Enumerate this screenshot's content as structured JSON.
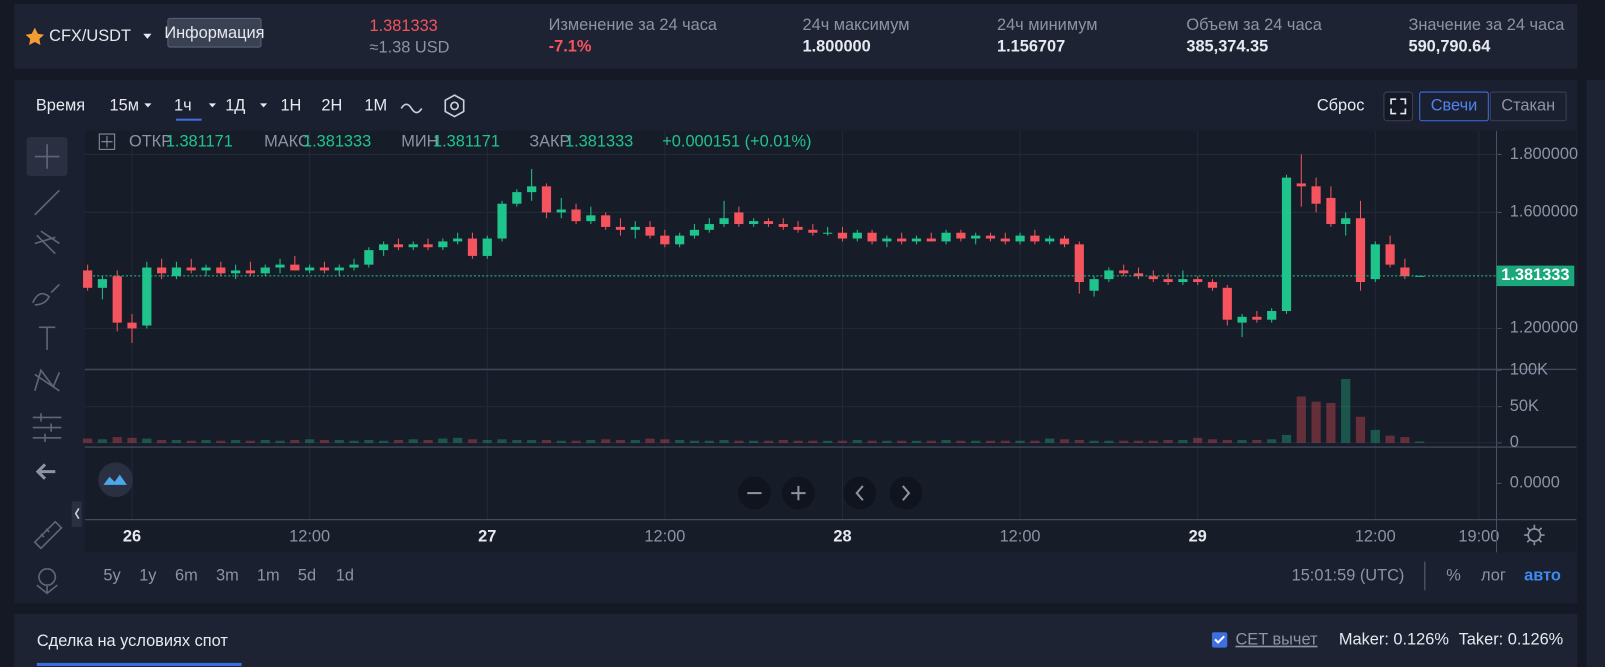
{
  "header": {
    "pair": "CFX/USDT",
    "info_button": "Информация",
    "price": "1.381333",
    "price_usd": "≈1.38 USD",
    "stats": [
      {
        "label": "Изменение за 24 часа",
        "value": "-7.1%"
      },
      {
        "label": "24ч максимум",
        "value": "1.800000"
      },
      {
        "label": "24ч минимум",
        "value": "1.156707"
      },
      {
        "label": "Объем за 24 часа",
        "value": "385,374.35"
      },
      {
        "label": "Значение за 24 часа",
        "value": "590,790.64"
      }
    ]
  },
  "toolbar": {
    "time_label": "Время",
    "intervals": [
      "15м",
      "1ч",
      "1Д",
      "1Н",
      "2Н",
      "1М"
    ],
    "reset": "Сброс",
    "views": [
      "Свечи",
      "Стакан"
    ]
  },
  "legend": {
    "open_label": "ОТКР",
    "open": "1.381171",
    "high_label": "МАКС",
    "high": "1.381333",
    "low_label": "МИН",
    "low": "1.381171",
    "close_label": "ЗАКР",
    "close": "1.381333",
    "change": "+0.000151 (+0.01%)"
  },
  "ranges": [
    "5y",
    "1y",
    "6m",
    "3m",
    "1m",
    "5d",
    "1d"
  ],
  "clock": "15:01:59 (UTC)",
  "scale_buttons": [
    "%",
    "лог",
    "авто"
  ],
  "trade": {
    "title": "Сделка на условиях спот",
    "cet": "CET вычет",
    "maker": "Maker: 0.126%",
    "taker": "Taker: 0.126%"
  },
  "chart_data": [
    {
      "type": "candlestick",
      "up_color": "#1fc48d",
      "down_color": "#f5535d",
      "grid": true,
      "xlim": [
        -0.18,
        95.05
      ],
      "ylim": [
        1.059,
        1.881
      ],
      "xticks": [
        {
          "value": 3,
          "label": "26"
        },
        {
          "value": 15,
          "label": "12:00"
        },
        {
          "value": 27,
          "label": "27"
        },
        {
          "value": 39,
          "label": "12:00"
        },
        {
          "value": 51,
          "label": "28"
        },
        {
          "value": 63,
          "label": "12:00"
        },
        {
          "value": 75,
          "label": "29"
        },
        {
          "value": 87,
          "label": "12:00"
        },
        {
          "value": 94,
          "label": "19:00"
        }
      ],
      "yticks": [
        {
          "value": 1.8,
          "label": "1.800000"
        },
        {
          "value": 1.6,
          "label": "1.600000"
        },
        {
          "value": 1.2,
          "label": "1.200000"
        }
      ],
      "last_price": 1.381333,
      "values": [
        [
          1.4,
          1.42,
          1.33,
          1.34
        ],
        [
          1.34,
          1.38,
          1.3,
          1.37
        ],
        [
          1.38,
          1.4,
          1.19,
          1.22
        ],
        [
          1.22,
          1.25,
          1.15,
          1.2
        ],
        [
          1.21,
          1.43,
          1.2,
          1.41
        ],
        [
          1.41,
          1.44,
          1.37,
          1.39
        ],
        [
          1.38,
          1.43,
          1.37,
          1.41
        ],
        [
          1.41,
          1.44,
          1.39,
          1.4
        ],
        [
          1.4,
          1.42,
          1.38,
          1.41
        ],
        [
          1.41,
          1.43,
          1.38,
          1.39
        ],
        [
          1.39,
          1.42,
          1.37,
          1.4
        ],
        [
          1.4,
          1.43,
          1.38,
          1.39
        ],
        [
          1.39,
          1.42,
          1.38,
          1.41
        ],
        [
          1.41,
          1.44,
          1.39,
          1.42
        ],
        [
          1.42,
          1.45,
          1.4,
          1.4
        ],
        [
          1.4,
          1.42,
          1.39,
          1.41
        ],
        [
          1.41,
          1.43,
          1.39,
          1.4
        ],
        [
          1.4,
          1.42,
          1.38,
          1.41
        ],
        [
          1.41,
          1.44,
          1.4,
          1.42
        ],
        [
          1.42,
          1.48,
          1.41,
          1.47
        ],
        [
          1.47,
          1.5,
          1.45,
          1.49
        ],
        [
          1.49,
          1.51,
          1.47,
          1.48
        ],
        [
          1.48,
          1.5,
          1.47,
          1.49
        ],
        [
          1.49,
          1.51,
          1.47,
          1.48
        ],
        [
          1.48,
          1.51,
          1.47,
          1.5
        ],
        [
          1.5,
          1.53,
          1.49,
          1.51
        ],
        [
          1.51,
          1.53,
          1.44,
          1.45
        ],
        [
          1.45,
          1.52,
          1.44,
          1.51
        ],
        [
          1.51,
          1.64,
          1.5,
          1.63
        ],
        [
          1.63,
          1.68,
          1.62,
          1.67
        ],
        [
          1.67,
          1.75,
          1.64,
          1.69
        ],
        [
          1.69,
          1.7,
          1.58,
          1.6
        ],
        [
          1.6,
          1.65,
          1.58,
          1.61
        ],
        [
          1.61,
          1.63,
          1.56,
          1.57
        ],
        [
          1.57,
          1.62,
          1.56,
          1.59
        ],
        [
          1.59,
          1.6,
          1.54,
          1.55
        ],
        [
          1.55,
          1.58,
          1.52,
          1.54
        ],
        [
          1.54,
          1.57,
          1.51,
          1.55
        ],
        [
          1.55,
          1.57,
          1.51,
          1.52
        ],
        [
          1.52,
          1.54,
          1.48,
          1.49
        ],
        [
          1.49,
          1.53,
          1.48,
          1.52
        ],
        [
          1.52,
          1.56,
          1.51,
          1.54
        ],
        [
          1.54,
          1.58,
          1.53,
          1.56
        ],
        [
          1.56,
          1.64,
          1.55,
          1.58
        ],
        [
          1.6,
          1.62,
          1.55,
          1.56
        ],
        [
          1.56,
          1.58,
          1.55,
          1.57
        ],
        [
          1.57,
          1.58,
          1.55,
          1.56
        ],
        [
          1.56,
          1.58,
          1.54,
          1.55
        ],
        [
          1.55,
          1.57,
          1.53,
          1.54
        ],
        [
          1.54,
          1.56,
          1.52,
          1.53
        ],
        [
          1.53,
          1.55,
          1.52,
          1.53
        ],
        [
          1.53,
          1.55,
          1.5,
          1.51
        ],
        [
          1.51,
          1.54,
          1.5,
          1.53
        ],
        [
          1.53,
          1.54,
          1.49,
          1.5
        ],
        [
          1.5,
          1.52,
          1.48,
          1.51
        ],
        [
          1.51,
          1.53,
          1.49,
          1.5
        ],
        [
          1.5,
          1.52,
          1.49,
          1.51
        ],
        [
          1.51,
          1.53,
          1.5,
          1.5
        ],
        [
          1.5,
          1.54,
          1.49,
          1.53
        ],
        [
          1.53,
          1.54,
          1.5,
          1.51
        ],
        [
          1.51,
          1.53,
          1.49,
          1.52
        ],
        [
          1.52,
          1.53,
          1.5,
          1.51
        ],
        [
          1.51,
          1.53,
          1.49,
          1.5
        ],
        [
          1.5,
          1.53,
          1.49,
          1.52
        ],
        [
          1.52,
          1.54,
          1.49,
          1.5
        ],
        [
          1.5,
          1.52,
          1.49,
          1.51
        ],
        [
          1.51,
          1.52,
          1.48,
          1.49
        ],
        [
          1.49,
          1.5,
          1.32,
          1.36
        ],
        [
          1.33,
          1.38,
          1.31,
          1.37
        ],
        [
          1.37,
          1.41,
          1.36,
          1.4
        ],
        [
          1.4,
          1.42,
          1.38,
          1.39
        ],
        [
          1.39,
          1.41,
          1.37,
          1.38
        ],
        [
          1.38,
          1.4,
          1.36,
          1.37
        ],
        [
          1.37,
          1.39,
          1.35,
          1.36
        ],
        [
          1.36,
          1.4,
          1.35,
          1.37
        ],
        [
          1.37,
          1.38,
          1.35,
          1.36
        ],
        [
          1.36,
          1.37,
          1.33,
          1.34
        ],
        [
          1.34,
          1.35,
          1.21,
          1.23
        ],
        [
          1.22,
          1.25,
          1.17,
          1.24
        ],
        [
          1.24,
          1.26,
          1.22,
          1.23
        ],
        [
          1.23,
          1.27,
          1.22,
          1.26
        ],
        [
          1.26,
          1.73,
          1.25,
          1.72
        ],
        [
          1.7,
          1.8,
          1.62,
          1.69
        ],
        [
          1.69,
          1.72,
          1.6,
          1.63
        ],
        [
          1.65,
          1.69,
          1.55,
          1.56
        ],
        [
          1.56,
          1.6,
          1.52,
          1.58
        ],
        [
          1.58,
          1.64,
          1.33,
          1.36
        ],
        [
          1.37,
          1.5,
          1.36,
          1.49
        ],
        [
          1.49,
          1.52,
          1.41,
          1.42
        ],
        [
          1.41,
          1.44,
          1.37,
          1.38
        ],
        [
          1.381171,
          1.381333,
          1.381171,
          1.381333
        ]
      ]
    },
    {
      "type": "volume",
      "grid": true,
      "xlim": [
        -0.18,
        95.05
      ],
      "ylim": [
        -5700,
        100000
      ],
      "yticks": [
        0,
        {
          "value": 50000,
          "label": "50K"
        },
        {
          "value": 100000,
          "label": "100K"
        }
      ],
      "values": [
        6000,
        5000,
        8000,
        7000,
        6000,
        4000,
        4000,
        3000,
        4000,
        3000,
        4000,
        3000,
        4000,
        3000,
        4000,
        5000,
        4000,
        4000,
        3000,
        4000,
        3000,
        4000,
        5000,
        4000,
        6000,
        7000,
        5000,
        4000,
        5000,
        4000,
        4000,
        4000,
        3000,
        3000,
        4000,
        5000,
        4000,
        4000,
        6000,
        5000,
        4000,
        3000,
        3000,
        4000,
        3000,
        3000,
        3000,
        4000,
        3000,
        3000,
        3000,
        3000,
        4000,
        3000,
        3000,
        3000,
        3000,
        3000,
        4000,
        3000,
        3000,
        3000,
        3000,
        3000,
        3000,
        6000,
        5000,
        4000,
        3000,
        3000,
        3000,
        3000,
        3000,
        4000,
        4000,
        7000,
        5000,
        4000,
        4000,
        4000,
        5000,
        11000,
        64000,
        57000,
        55000,
        88000,
        36000,
        18000,
        10000,
        8000,
        2000
      ]
    },
    {
      "type": "macd",
      "ylim": [
        -0.05,
        0.05
      ],
      "yticks": [
        {
          "value": 0,
          "label": "0.0000"
        }
      ]
    }
  ]
}
